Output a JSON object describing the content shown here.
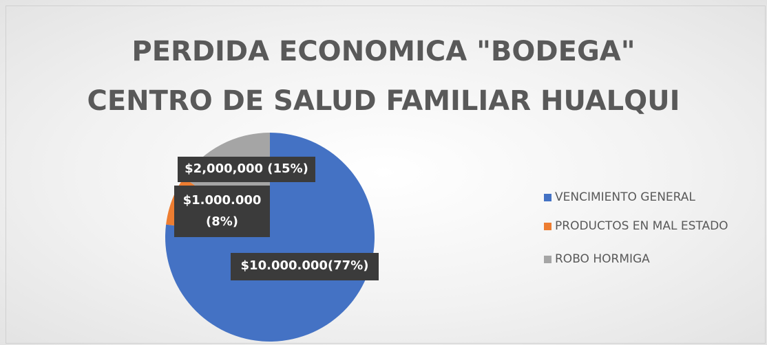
{
  "chart_data": {
    "type": "pie",
    "title": [
      "PERDIDA ECONOMICA \"BODEGA\"",
      "CENTRO DE SALUD FAMILIAR HUALQUI"
    ],
    "categories": [
      "VENCIMIENTO GENERAL",
      "PRODUCTOS EN MAL ESTADO",
      "ROBO HORMIGA"
    ],
    "values": [
      10000000,
      1000000,
      2000000
    ],
    "value_labels": [
      "$10.000.000(77%)",
      "$1.000.000 (8%)",
      "$2,000,000 (15%)"
    ],
    "colors": [
      "#4472c4",
      "#ed7d31",
      "#a5a5a5"
    ],
    "legend": "right"
  }
}
